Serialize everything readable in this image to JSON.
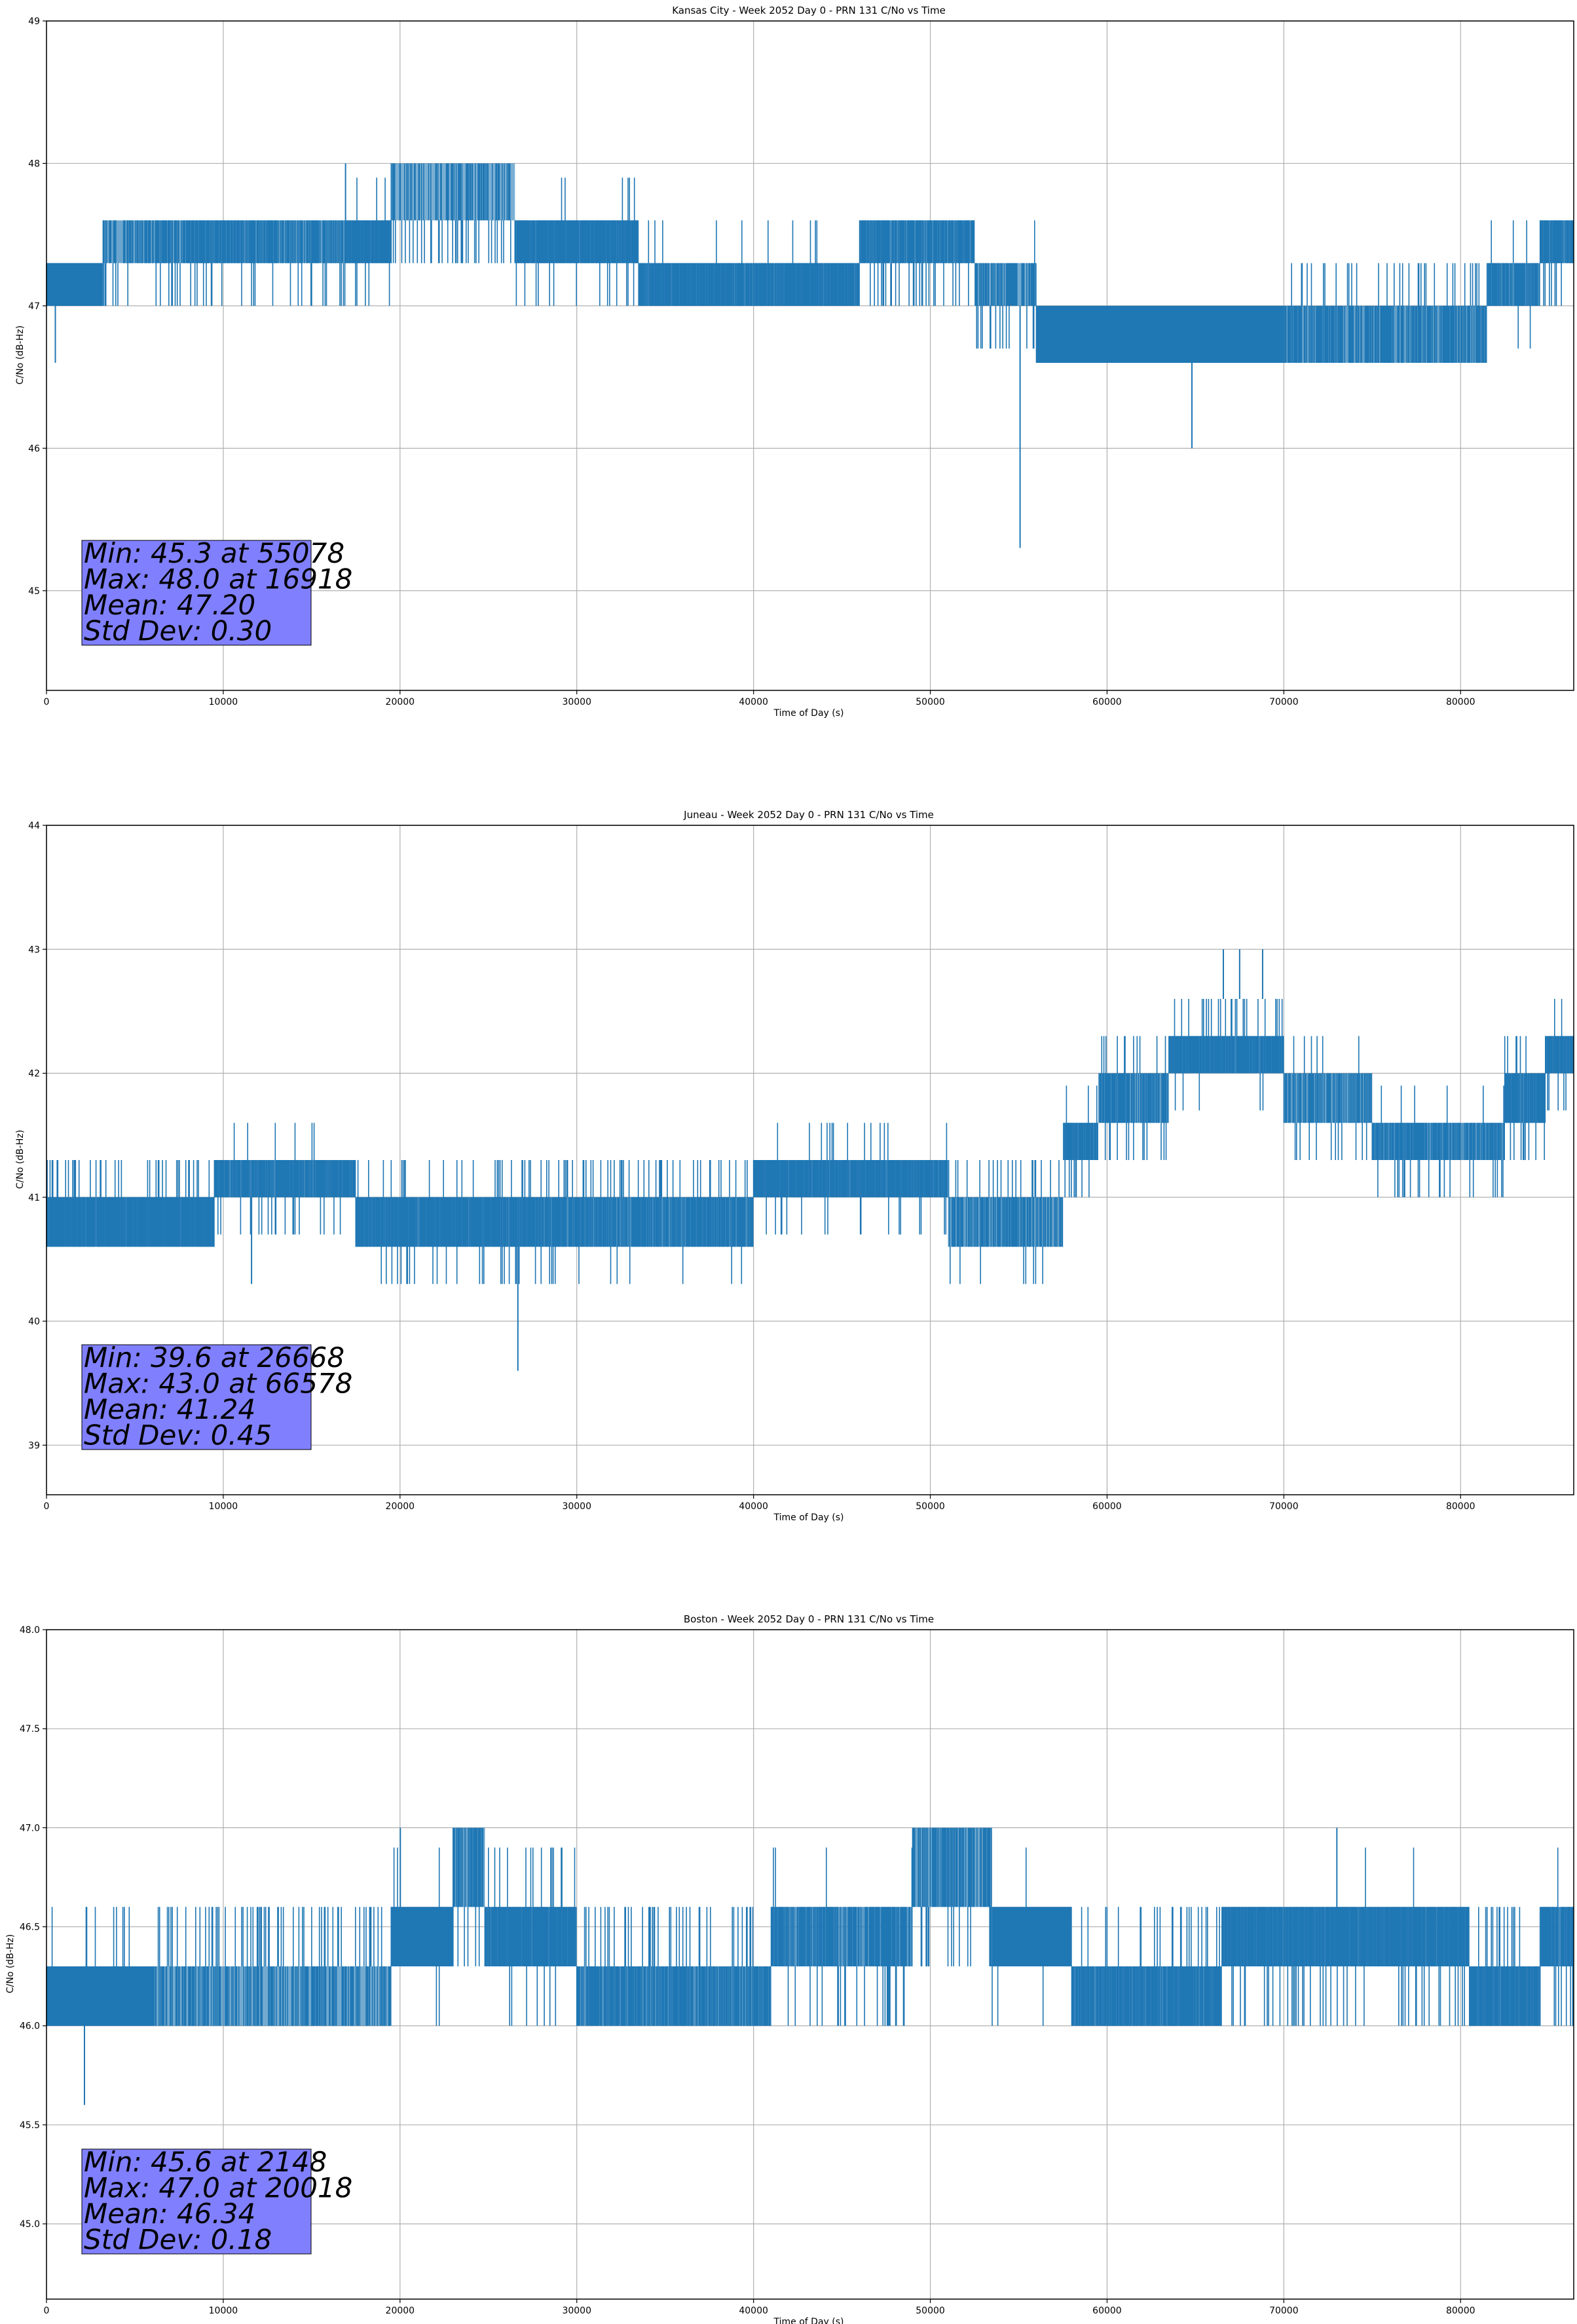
{
  "colors": {
    "series": "#1f77b4",
    "grid": "#b0b0b0",
    "stat_box": "#8080ff"
  },
  "chart_data": [
    {
      "type": "line",
      "title": "Kansas City - Week 2052 Day 0 - PRN 131 C/No vs Time",
      "xlabel": "Time of Day (s)",
      "ylabel": "C/No (dB-Hz)",
      "xlim": [
        0,
        86400
      ],
      "ylim": [
        44.3,
        49
      ],
      "xticks": [
        0,
        10000,
        20000,
        30000,
        40000,
        50000,
        60000,
        70000,
        80000
      ],
      "xtick_labels": [
        "0",
        "10000",
        "20000",
        "30000",
        "40000",
        "50000",
        "60000",
        "70000",
        "80000"
      ],
      "yticks": [
        45,
        46,
        47,
        48,
        49
      ],
      "ytick_labels": [
        "45",
        "46",
        "47",
        "48",
        "49"
      ],
      "grid": true,
      "stats": [
        "Min: 45.3 at 55078",
        "Max: 48.0 at 16918",
        "Mean: 47.20",
        "Std Dev: 0.30"
      ],
      "bands": [
        {
          "x0": 0,
          "x1": 3200,
          "lo": 47.0,
          "hi": 47.3,
          "dens": 1.0,
          "up": 0.0,
          "down": 0.04
        },
        {
          "x0": 3200,
          "x1": 8000,
          "lo": 47.3,
          "hi": 47.6,
          "dens": 0.55,
          "up": 0.0,
          "down": 0.4
        },
        {
          "x0": 8000,
          "x1": 13000,
          "lo": 47.3,
          "hi": 47.6,
          "dens": 0.7,
          "up": 0.0,
          "down": 0.3
        },
        {
          "x0": 13000,
          "x1": 17000,
          "lo": 47.3,
          "hi": 47.6,
          "dens": 0.6,
          "up": 0.0,
          "down": 0.4
        },
        {
          "x0": 17000,
          "x1": 19500,
          "lo": 47.3,
          "hi": 47.6,
          "dens": 0.9,
          "up": 0.1,
          "down": 0.25
        },
        {
          "x0": 19500,
          "x1": 26500,
          "lo": 47.6,
          "hi": 48.0,
          "dens": 0.45,
          "up": 0.0,
          "down": 0.5
        },
        {
          "x0": 26500,
          "x1": 33500,
          "lo": 47.3,
          "hi": 47.6,
          "dens": 0.85,
          "up": 0.04,
          "down": 0.2
        },
        {
          "x0": 33500,
          "x1": 46000,
          "lo": 47.0,
          "hi": 47.3,
          "dens": 0.85,
          "up": 0.06,
          "down": 0.0
        },
        {
          "x0": 46000,
          "x1": 52500,
          "lo": 47.3,
          "hi": 47.6,
          "dens": 0.75,
          "up": 0.0,
          "down": 0.35
        },
        {
          "x0": 52500,
          "x1": 56000,
          "lo": 47.0,
          "hi": 47.3,
          "dens": 0.5,
          "up": 0.05,
          "down": 0.25
        },
        {
          "x0": 56000,
          "x1": 70000,
          "lo": 46.6,
          "hi": 47.0,
          "dens": 1.0,
          "up": 0.0,
          "down": 0.04
        },
        {
          "x0": 70000,
          "x1": 81500,
          "lo": 46.6,
          "hi": 47.0,
          "dens": 0.6,
          "up": 0.4,
          "down": 0.0
        },
        {
          "x0": 81500,
          "x1": 84500,
          "lo": 47.0,
          "hi": 47.3,
          "dens": 0.75,
          "up": 0.15,
          "down": 0.1
        },
        {
          "x0": 84500,
          "x1": 86400,
          "lo": 47.3,
          "hi": 47.6,
          "dens": 0.8,
          "up": 0.0,
          "down": 0.3
        }
      ],
      "spikes": [
        {
          "x": 500,
          "lo": 46.6,
          "hi": 47.0
        },
        {
          "x": 55078,
          "lo": 45.3,
          "hi": 47.0
        },
        {
          "x": 64800,
          "lo": 46.0,
          "hi": 46.6
        },
        {
          "x": 16918,
          "lo": 47.6,
          "hi": 48.0
        }
      ]
    },
    {
      "type": "line",
      "title": "Juneau - Week 2052 Day 0 - PRN 131 C/No vs Time",
      "xlabel": "Time of Day (s)",
      "ylabel": "C/No (dB-Hz)",
      "xlim": [
        0,
        86400
      ],
      "ylim": [
        38.6,
        44
      ],
      "xticks": [
        0,
        10000,
        20000,
        30000,
        40000,
        50000,
        60000,
        70000,
        80000
      ],
      "xtick_labels": [
        "0",
        "10000",
        "20000",
        "30000",
        "40000",
        "50000",
        "60000",
        "70000",
        "80000"
      ],
      "yticks": [
        39,
        40,
        41,
        42,
        43,
        44
      ],
      "ytick_labels": [
        "39",
        "40",
        "41",
        "42",
        "43",
        "44"
      ],
      "grid": true,
      "stats": [
        "Min: 39.6 at 26668",
        "Max: 43.0 at 66578",
        "Mean: 41.24",
        "Std Dev: 0.45"
      ],
      "bands": [
        {
          "x0": 0,
          "x1": 9500,
          "lo": 40.6,
          "hi": 41.0,
          "dens": 0.9,
          "up": 0.45,
          "down": 0.0
        },
        {
          "x0": 9500,
          "x1": 17500,
          "lo": 41.0,
          "hi": 41.3,
          "dens": 0.8,
          "up": 0.12,
          "down": 0.3
        },
        {
          "x0": 17500,
          "x1": 25500,
          "lo": 40.6,
          "hi": 41.0,
          "dens": 0.85,
          "up": 0.2,
          "down": 0.18
        },
        {
          "x0": 25500,
          "x1": 29000,
          "lo": 40.6,
          "hi": 41.0,
          "dens": 0.8,
          "up": 0.4,
          "down": 0.35
        },
        {
          "x0": 29000,
          "x1": 40000,
          "lo": 40.6,
          "hi": 41.0,
          "dens": 0.75,
          "up": 0.45,
          "down": 0.08
        },
        {
          "x0": 40000,
          "x1": 51000,
          "lo": 41.0,
          "hi": 41.3,
          "dens": 0.85,
          "up": 0.18,
          "down": 0.2
        },
        {
          "x0": 51000,
          "x1": 57500,
          "lo": 40.6,
          "hi": 41.0,
          "dens": 0.6,
          "up": 0.4,
          "down": 0.1
        },
        {
          "x0": 57500,
          "x1": 59500,
          "lo": 41.3,
          "hi": 41.6,
          "dens": 0.85,
          "up": 0.1,
          "down": 0.3
        },
        {
          "x0": 59500,
          "x1": 63500,
          "lo": 41.6,
          "hi": 42.0,
          "dens": 0.6,
          "up": 0.15,
          "down": 0.3
        },
        {
          "x0": 63500,
          "x1": 70000,
          "lo": 42.0,
          "hi": 42.3,
          "dens": 0.85,
          "up": 0.35,
          "down": 0.1
        },
        {
          "x0": 70000,
          "x1": 75000,
          "lo": 41.6,
          "hi": 42.0,
          "dens": 0.6,
          "up": 0.1,
          "down": 0.4
        },
        {
          "x0": 75000,
          "x1": 82500,
          "lo": 41.3,
          "hi": 41.6,
          "dens": 0.7,
          "up": 0.1,
          "down": 0.4
        },
        {
          "x0": 82500,
          "x1": 84800,
          "lo": 41.6,
          "hi": 42.0,
          "dens": 0.8,
          "up": 0.25,
          "down": 0.15
        },
        {
          "x0": 84800,
          "x1": 86400,
          "lo": 42.0,
          "hi": 42.3,
          "dens": 0.85,
          "up": 0.2,
          "down": 0.3
        }
      ],
      "spikes": [
        {
          "x": 26668,
          "lo": 39.6,
          "hi": 40.6
        },
        {
          "x": 66578,
          "lo": 42.6,
          "hi": 43.0
        },
        {
          "x": 67500,
          "lo": 42.6,
          "hi": 43.0
        },
        {
          "x": 68800,
          "lo": 42.6,
          "hi": 43.0
        },
        {
          "x": 11600,
          "lo": 40.3,
          "hi": 41.0
        }
      ]
    },
    {
      "type": "line",
      "title": "Boston - Week 2052 Day 0 - PRN 131 C/No vs Time",
      "xlabel": "Time of Day (s)",
      "ylabel": "C/No (dB-Hz)",
      "xlim": [
        0,
        86400
      ],
      "ylim": [
        44.62,
        48.0
      ],
      "xticks": [
        0,
        10000,
        20000,
        30000,
        40000,
        50000,
        60000,
        70000,
        80000
      ],
      "xtick_labels": [
        "0",
        "10000",
        "20000",
        "30000",
        "40000",
        "50000",
        "60000",
        "70000",
        "80000"
      ],
      "yticks": [
        45.0,
        45.5,
        46.0,
        46.5,
        47.0,
        47.5,
        48.0
      ],
      "ytick_labels": [
        "45.0",
        "45.5",
        "46.0",
        "46.5",
        "47.0",
        "47.5",
        "48.0"
      ],
      "grid": true,
      "stats": [
        "Min: 45.6 at 2148",
        "Max: 47.0 at 20018",
        "Mean: 46.34",
        "Std Dev: 0.18"
      ],
      "bands": [
        {
          "x0": 0,
          "x1": 6000,
          "lo": 46.0,
          "hi": 46.3,
          "dens": 1.0,
          "up": 0.15,
          "down": 0.0
        },
        {
          "x0": 6000,
          "x1": 19500,
          "lo": 46.0,
          "hi": 46.3,
          "dens": 0.5,
          "up": 0.5,
          "down": 0.0
        },
        {
          "x0": 19500,
          "x1": 23000,
          "lo": 46.3,
          "hi": 46.6,
          "dens": 1.0,
          "up": 0.1,
          "down": 0.05
        },
        {
          "x0": 23000,
          "x1": 24800,
          "lo": 46.6,
          "hi": 47.0,
          "dens": 0.6,
          "up": 0.0,
          "down": 0.2
        },
        {
          "x0": 24800,
          "x1": 30000,
          "lo": 46.3,
          "hi": 46.6,
          "dens": 0.85,
          "up": 0.2,
          "down": 0.1
        },
        {
          "x0": 30000,
          "x1": 41000,
          "lo": 46.0,
          "hi": 46.3,
          "dens": 0.7,
          "up": 0.45,
          "down": 0.0
        },
        {
          "x0": 41000,
          "x1": 49000,
          "lo": 46.3,
          "hi": 46.6,
          "dens": 0.65,
          "up": 0.05,
          "down": 0.35
        },
        {
          "x0": 49000,
          "x1": 53500,
          "lo": 46.6,
          "hi": 47.0,
          "dens": 0.55,
          "up": 0.0,
          "down": 0.35
        },
        {
          "x0": 53500,
          "x1": 58000,
          "lo": 46.3,
          "hi": 46.6,
          "dens": 1.0,
          "up": 0.05,
          "down": 0.1
        },
        {
          "x0": 58000,
          "x1": 66500,
          "lo": 46.0,
          "hi": 46.3,
          "dens": 0.8,
          "up": 0.4,
          "down": 0.0
        },
        {
          "x0": 66500,
          "x1": 80500,
          "lo": 46.3,
          "hi": 46.6,
          "dens": 0.85,
          "up": 0.02,
          "down": 0.25
        },
        {
          "x0": 80500,
          "x1": 84500,
          "lo": 46.0,
          "hi": 46.3,
          "dens": 0.8,
          "up": 0.35,
          "down": 0.0
        },
        {
          "x0": 84500,
          "x1": 86400,
          "lo": 46.3,
          "hi": 46.6,
          "dens": 0.8,
          "up": 0.1,
          "down": 0.2
        }
      ],
      "spikes": [
        {
          "x": 2148,
          "lo": 45.6,
          "hi": 46.0
        },
        {
          "x": 20018,
          "lo": 46.6,
          "hi": 47.0
        },
        {
          "x": 73000,
          "lo": 46.6,
          "hi": 47.0
        }
      ]
    }
  ]
}
